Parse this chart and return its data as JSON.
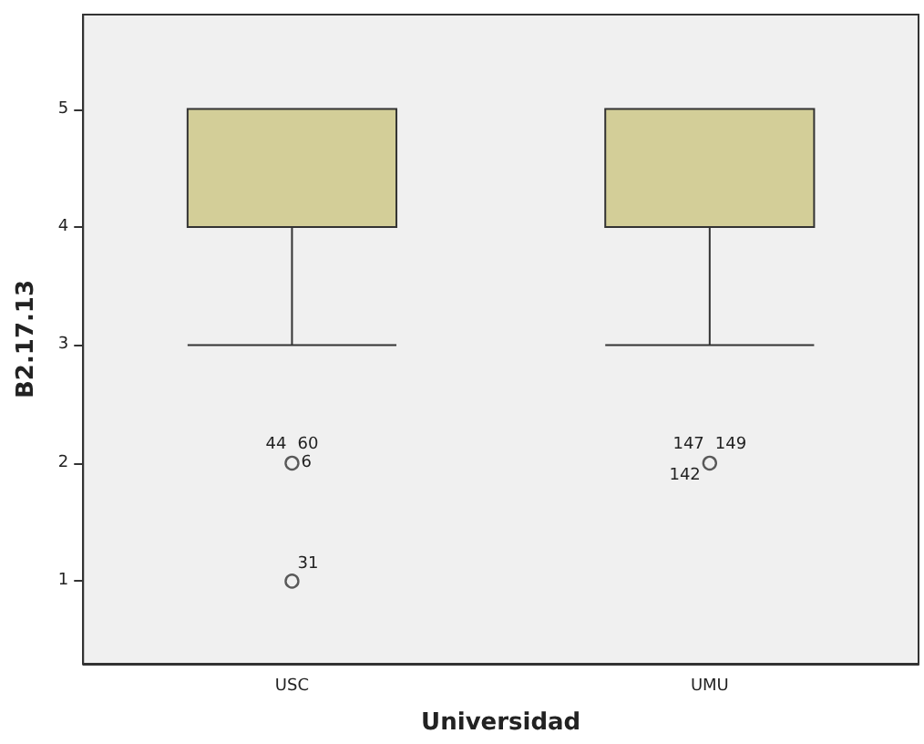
{
  "chart_data": {
    "type": "box",
    "xlabel": "Universidad",
    "ylabel": "B2.17.13",
    "categories": [
      "USC",
      "UMU"
    ],
    "boxes": [
      {
        "low": 3,
        "q1": 4,
        "median": 4,
        "q3": 5,
        "high": 5,
        "outliers": [
          2,
          1
        ]
      },
      {
        "low": 3,
        "q1": 4,
        "median": 4,
        "q3": 5,
        "high": 5,
        "outliers": [
          2
        ]
      }
    ],
    "color": "#d3ce98",
    "ylim": [
      0.3,
      5.8
    ],
    "yticks": [
      1,
      2,
      3,
      4,
      5
    ],
    "grid": false,
    "marker": "circle",
    "annotations": [
      "44",
      "60",
      "6",
      "31",
      "147",
      "149",
      "142"
    ]
  }
}
